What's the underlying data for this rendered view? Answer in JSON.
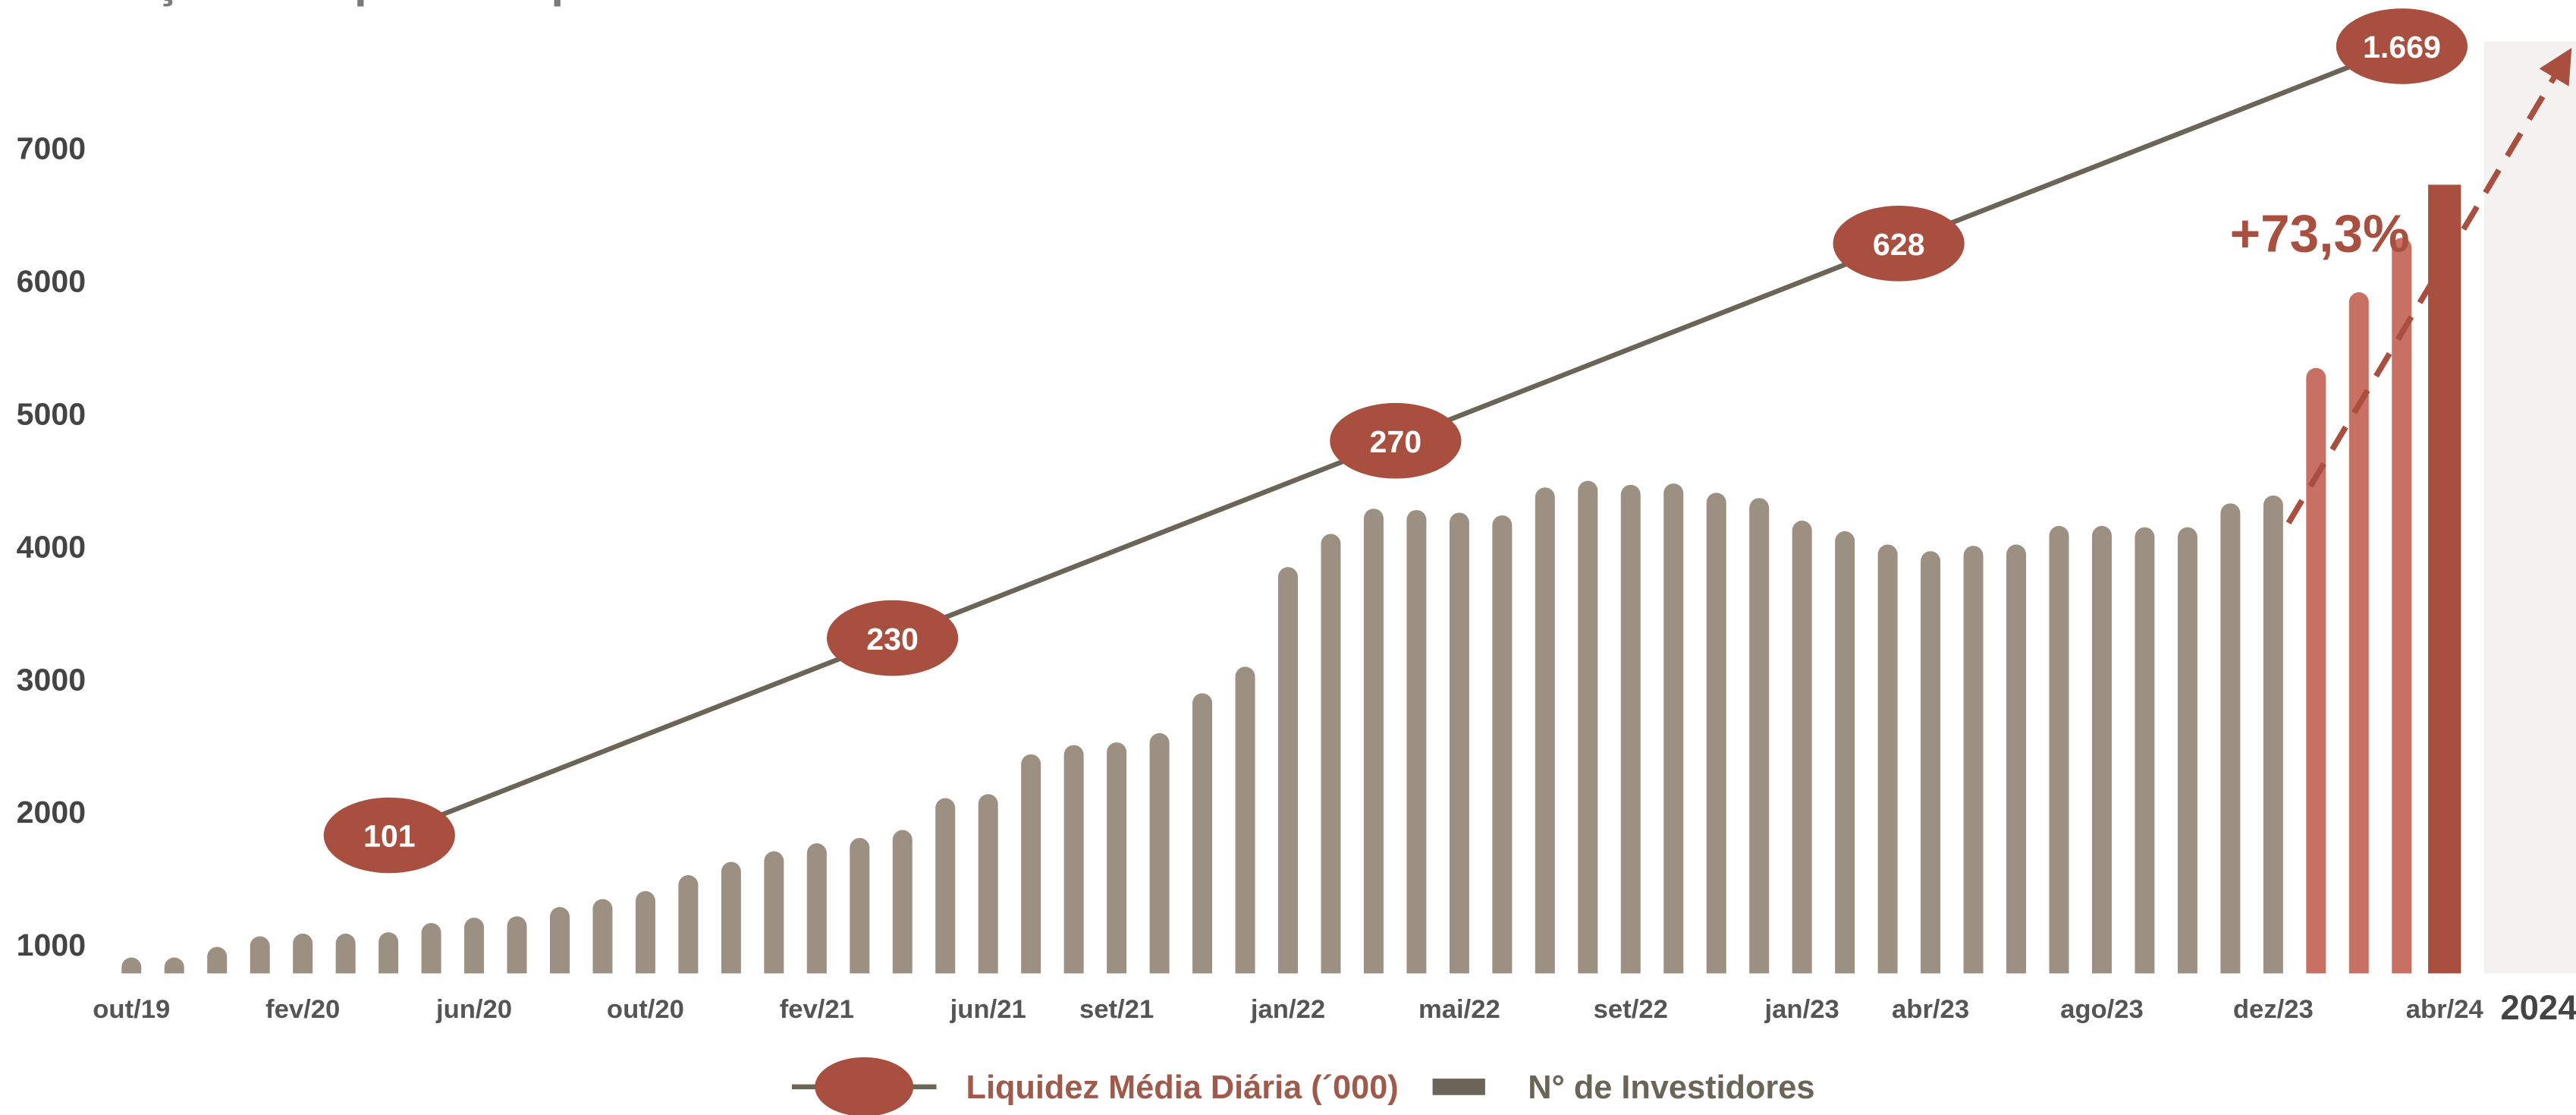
{
  "chart_data": {
    "type": "bar",
    "title": "Evolução da liquidez e quantidade de cotistas do",
    "categories": [
      "out/19",
      null,
      null,
      null,
      "fev/20",
      null,
      null,
      null,
      "jun/20",
      null,
      null,
      null,
      "out/20",
      null,
      null,
      null,
      "fev/21",
      null,
      null,
      null,
      "jun/21",
      null,
      null,
      "set/21",
      null,
      null,
      null,
      "jan/22",
      null,
      null,
      null,
      "mai/22",
      null,
      null,
      null,
      "set/22",
      null,
      null,
      null,
      "jan/23",
      null,
      null,
      "abr/23",
      null,
      null,
      null,
      "ago/23",
      null,
      null,
      null,
      "dez/23",
      null,
      null,
      null,
      "abr/24"
    ],
    "series": [
      {
        "name": "N° de Investidores",
        "color": "#6b6557",
        "colors": [
          "#9c9083",
          "#9c9083",
          "#9c9083",
          "#9c9083",
          "#9c9083",
          "#9c9083",
          "#9c9083",
          "#9c9083",
          "#9c9083",
          "#9c9083",
          "#9c9083",
          "#9c9083",
          "#9c9083",
          "#9c9083",
          "#9c9083",
          "#9c9083",
          "#9c9083",
          "#9c9083",
          "#9c9083",
          "#9c9083",
          "#9c9083",
          "#9c9083",
          "#9c9083",
          "#9c9083",
          "#9c9083",
          "#9c9083",
          "#9c9083",
          "#9c9083",
          "#9c9083",
          "#9c9083",
          "#9c9083",
          "#9c9083",
          "#9c9083",
          "#9c9083",
          "#9c9083",
          "#9c9083",
          "#9c9083",
          "#9c9083",
          "#9c9083",
          "#9c9083",
          "#9c9083",
          "#9c9083",
          "#9c9083",
          "#9c9083",
          "#9c9083",
          "#9c9083",
          "#9c9083",
          "#9c9083",
          "#9c9083",
          "#9c9083",
          "#9c9083",
          "#c97065",
          "#c97065",
          "#c97065",
          "#a84f3f"
        ],
        "values": [
          900,
          900,
          980,
          1060,
          1080,
          1080,
          1090,
          1160,
          1200,
          1210,
          1280,
          1340,
          1400,
          1520,
          1620,
          1700,
          1760,
          1800,
          1860,
          2100,
          2130,
          2430,
          2500,
          2520,
          2590,
          2890,
          3090,
          3840,
          4090,
          4280,
          4270,
          4250,
          4230,
          4440,
          4490,
          4460,
          4470,
          4400,
          4360,
          4190,
          4110,
          4010,
          3960,
          4000,
          4010,
          4150,
          4150,
          4140,
          4140,
          4320,
          4380,
          5340,
          5910,
          6320,
          6720
        ]
      }
    ],
    "liquidity": {
      "name": "Liquidez Média Diária (´000)",
      "color": "#a84f3f",
      "line_color": "#6b6557",
      "values": [
        101,
        230,
        270,
        628,
        1669
      ],
      "value_labels": [
        "101",
        "230",
        "270",
        "628",
        "1.669"
      ]
    },
    "annotation": "+73,3%",
    "next_period": "2024",
    "ylim": [
      780,
      7800
    ],
    "yticks": [
      1000,
      2000,
      3000,
      4000,
      5000,
      6000,
      7000
    ],
    "grid": false
  }
}
